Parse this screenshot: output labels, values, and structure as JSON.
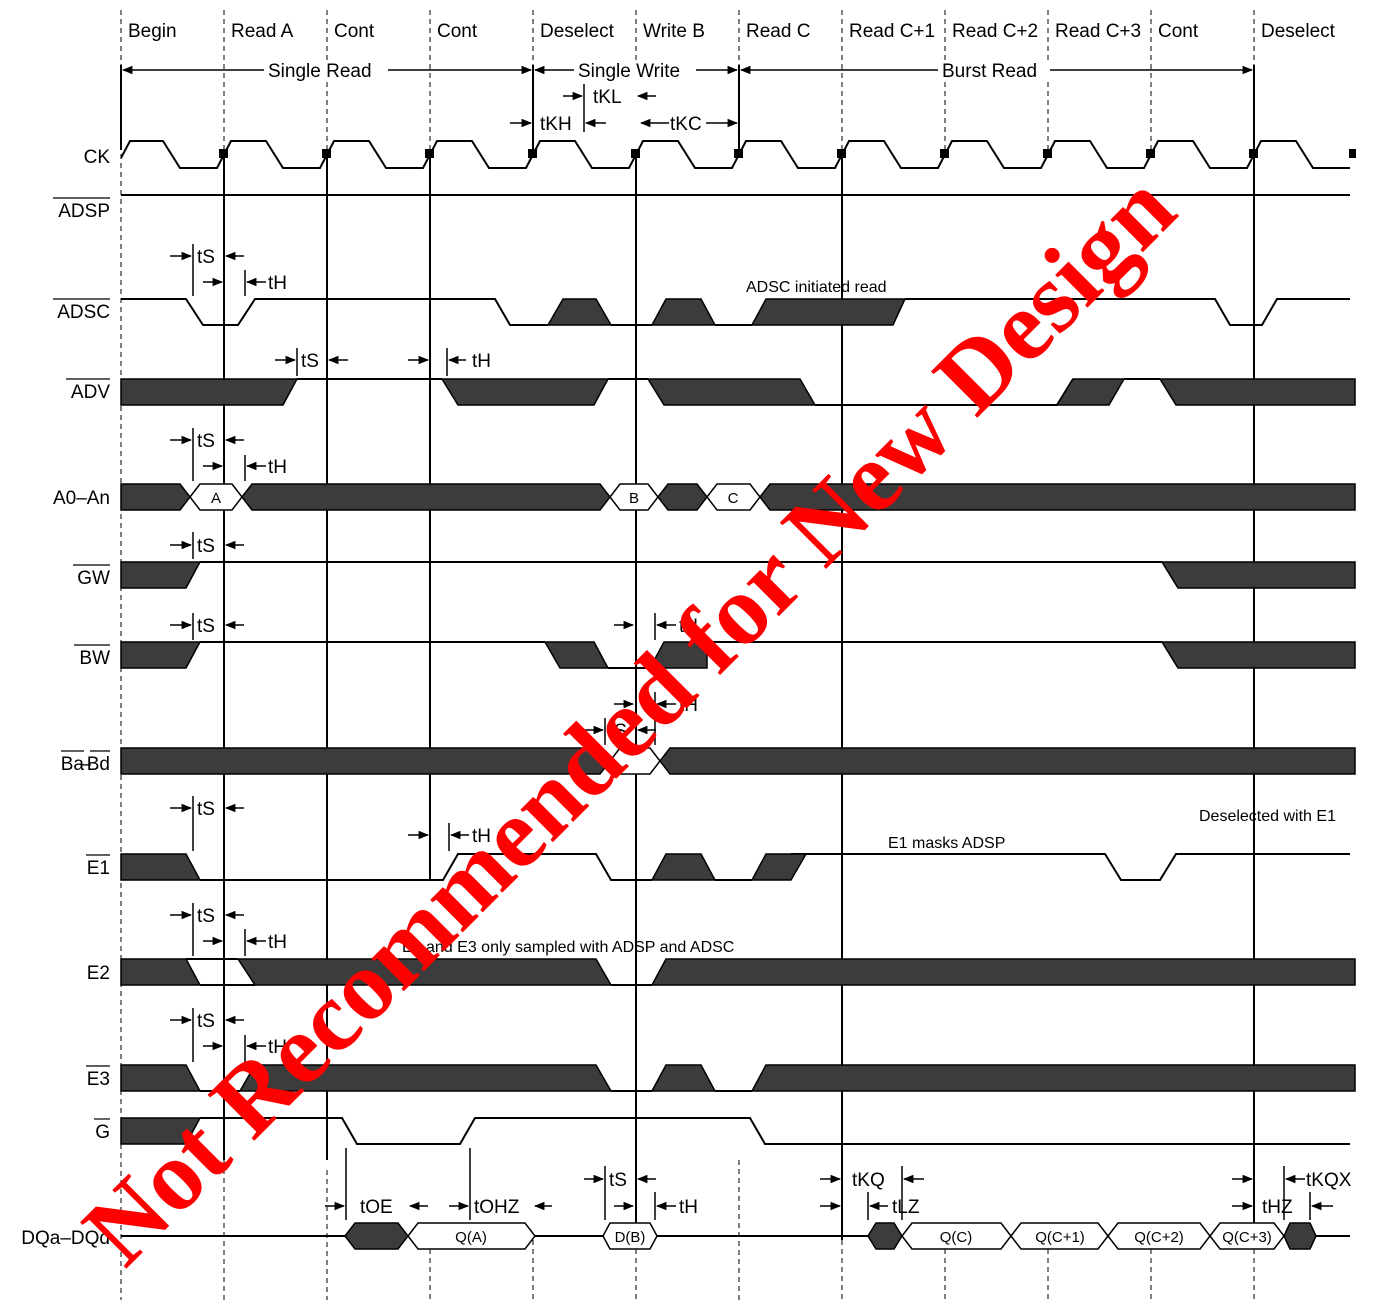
{
  "phases": [
    "Begin",
    "Read A",
    "Cont",
    "Cont",
    "Deselect",
    "Write B",
    "Read C",
    "Read C+1",
    "Read C+2",
    "Read C+3",
    "Cont",
    "Deselect"
  ],
  "spans": {
    "single_read": "Single Read",
    "single_write": "Single Write",
    "burst_read": "Burst Read"
  },
  "signals": {
    "ck": "CK",
    "adsp": "ADSP",
    "adsc": "ADSC",
    "adv": "ADV",
    "addr": "A0–An",
    "gw": "GW",
    "bw": "BW",
    "ba_bd_1": "Ba",
    "ba_bd_sep": "–",
    "ba_bd_2": "Bd",
    "e1": "E1",
    "e2": "E2",
    "e3": "E3",
    "g": "G",
    "dq": "DQa–DQd"
  },
  "timing": {
    "tkh": "tKH",
    "tkl": "tKL",
    "tkc": "tKC",
    "ts": "tS",
    "th": "tH",
    "toe": "tOE",
    "tohz": "tOHZ",
    "tkq": "tKQ",
    "tlz": "tLZ",
    "thz": "tHZ",
    "tkqx": "tKQX"
  },
  "bus_values": {
    "a": "A",
    "b": "B",
    "c": "C",
    "qa": "Q(A)",
    "db": "D(B)",
    "qc": "Q(C)",
    "qc1": "Q(C+1)",
    "qc2": "Q(C+2)",
    "qc3": "Q(C+3)"
  },
  "notes": {
    "adsc_read": "ADSC initiated read",
    "deselect_e1": "Deselected with E1",
    "e1_mask": "E1 masks ADSP",
    "e2e3": "E2 and E3 only sampled with ADSP and ADSC"
  },
  "watermark": "Not Recommended for New Design",
  "colors": {
    "fill": "#3c3c3c",
    "line": "#000000",
    "watermark": "#ff0000"
  }
}
